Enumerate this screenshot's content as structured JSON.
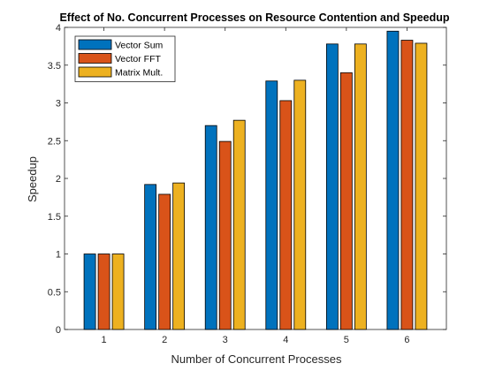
{
  "chart_data": {
    "type": "bar",
    "title": "Effect of No. Concurrent Processes on Resource Contention and Speedup",
    "xlabel": "Number of Concurrent Processes",
    "ylabel": "Speedup",
    "categories": [
      "1",
      "2",
      "3",
      "4",
      "5",
      "6"
    ],
    "ylim": [
      0,
      4
    ],
    "yticks": [
      "0",
      "0.5",
      "1",
      "1.5",
      "2",
      "2.5",
      "3",
      "3.5",
      "4"
    ],
    "grid": false,
    "legend_position": "top-left",
    "series": [
      {
        "name": "Vector Sum",
        "color": "#0072BD",
        "values": [
          1.0,
          1.92,
          2.7,
          3.29,
          3.78,
          3.95
        ]
      },
      {
        "name": "Vector FFT",
        "color": "#D95319",
        "values": [
          1.0,
          1.79,
          2.49,
          3.03,
          3.4,
          3.83
        ]
      },
      {
        "name": "Matrix Mult.",
        "color": "#EDB120",
        "values": [
          1.0,
          1.94,
          2.77,
          3.3,
          3.78,
          3.79
        ]
      }
    ]
  }
}
